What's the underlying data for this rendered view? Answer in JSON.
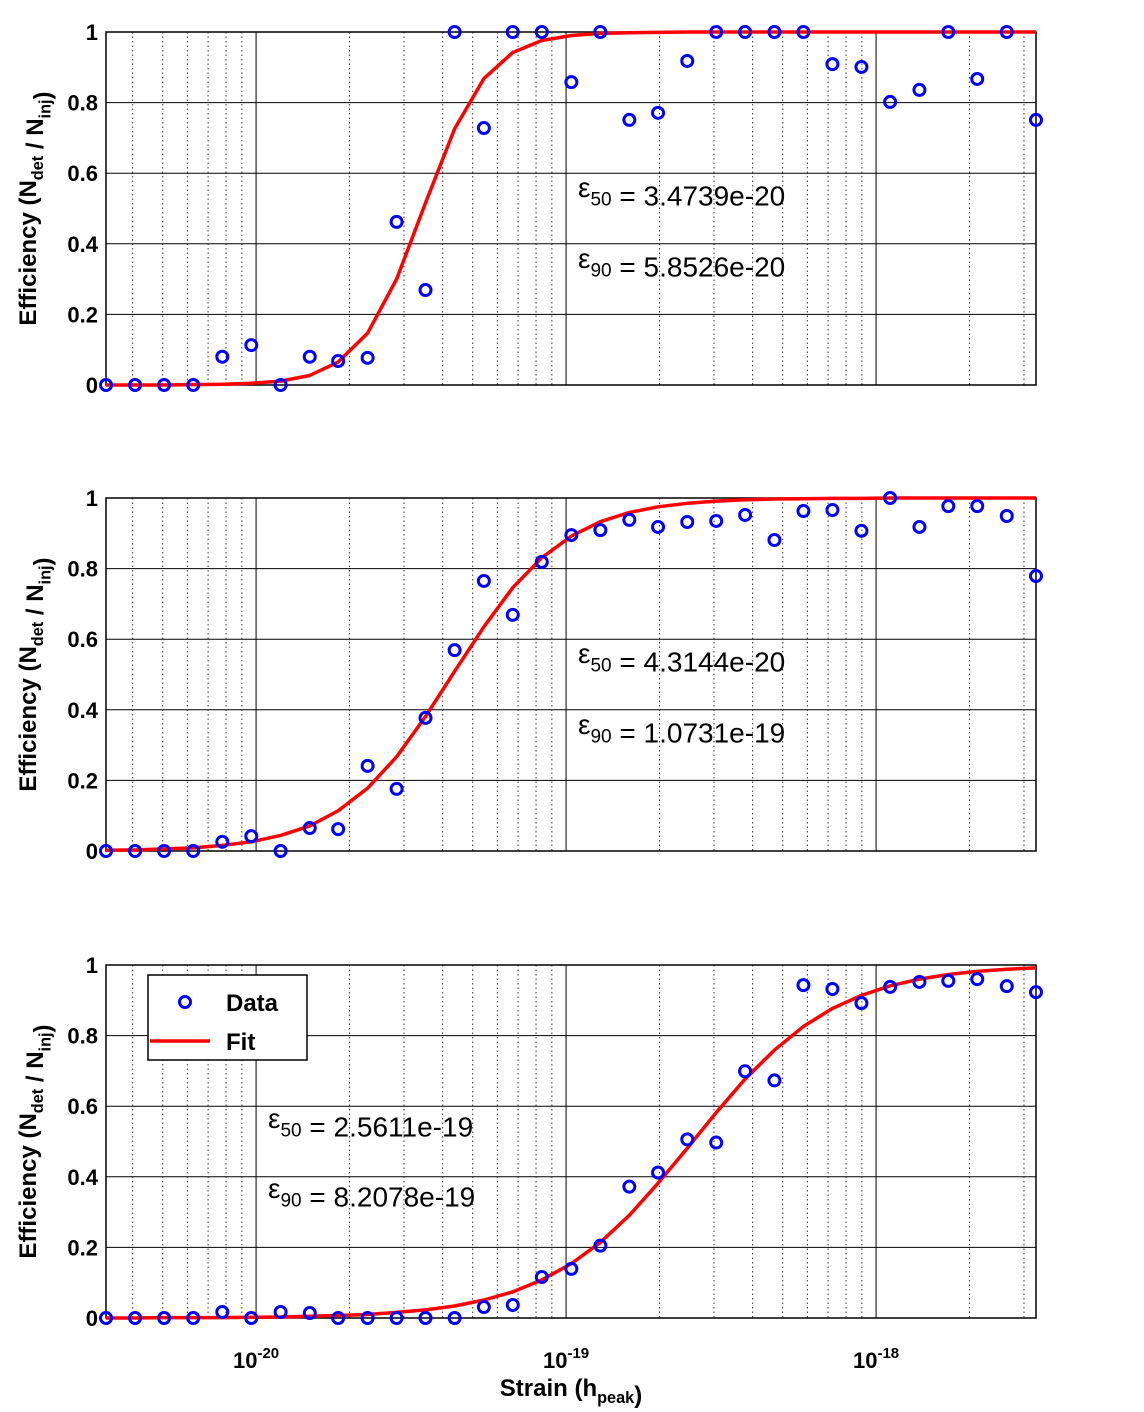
{
  "chart_data": [
    {
      "type": "scatter",
      "ylabel": "Efficiency  (N_det / N_inj)",
      "xscale": "log",
      "grid": true,
      "minor_grid": true,
      "xlim": [
        3.28e-21,
        3.28e-18
      ],
      "xticks": [
        1e-20,
        1e-19,
        1e-18
      ],
      "ylim": [
        0,
        1
      ],
      "yticks": [
        0,
        0.2,
        0.4,
        0.6,
        0.8,
        1
      ],
      "x": [
        3.28e-21,
        4.07e-21,
        5.05e-21,
        6.27e-21,
        7.78e-21,
        9.65e-21,
        1.2e-20,
        1.49e-20,
        1.84e-20,
        2.29e-20,
        2.84e-20,
        3.52e-20,
        4.37e-20,
        5.43e-20,
        6.73e-20,
        8.35e-20,
        1.04e-19,
        1.29e-19,
        1.6e-19,
        1.98e-19,
        2.46e-19,
        3.05e-19,
        3.78e-19,
        4.7e-19,
        5.83e-19,
        7.23e-19,
        8.97e-19,
        1.11e-18,
        1.38e-18,
        1.71e-18,
        2.12e-18,
        2.64e-18,
        3.28e-18
      ],
      "series": [
        {
          "kind": "marker",
          "color": "#0000ff",
          "values": [
            0,
            0,
            0,
            0,
            0.08,
            0.113,
            0,
            0.08,
            0.068,
            0.077,
            0.462,
            0.269,
            1,
            0.728,
            1,
            1,
            0.858,
            1,
            0.751,
            0.771,
            0.918,
            1,
            1,
            1,
            1,
            0.909,
            0.901,
            0.802,
            0.836,
            1,
            0.867,
            1,
            0.751
          ]
        },
        {
          "kind": "line",
          "color": "#ff0000",
          "values": [
            0,
            0,
            0,
            0.001,
            0.002,
            0.005,
            0.011,
            0.027,
            0.065,
            0.147,
            0.3,
            0.516,
            0.726,
            0.868,
            0.942,
            0.976,
            0.99,
            0.996,
            0.998,
            0.999,
            1,
            1,
            1,
            1,
            1,
            1,
            1,
            1,
            1,
            1,
            1,
            1,
            1
          ]
        }
      ],
      "annotations": [
        "ε_50 = 3.4739e-20",
        "ε_90 = 5.8526e-20"
      ]
    },
    {
      "type": "scatter",
      "ylabel": "Efficiency  (N_det / N_inj)",
      "xscale": "log",
      "grid": true,
      "minor_grid": true,
      "xlim": [
        3.28e-21,
        3.28e-18
      ],
      "xticks": [
        1e-20,
        1e-19,
        1e-18
      ],
      "ylim": [
        0,
        1
      ],
      "yticks": [
        0,
        0.2,
        0.4,
        0.6,
        0.8,
        1
      ],
      "x": [
        3.28e-21,
        4.07e-21,
        5.05e-21,
        6.27e-21,
        7.78e-21,
        9.65e-21,
        1.2e-20,
        1.49e-20,
        1.84e-20,
        2.29e-20,
        2.84e-20,
        3.52e-20,
        4.37e-20,
        5.43e-20,
        6.73e-20,
        8.35e-20,
        1.04e-19,
        1.29e-19,
        1.6e-19,
        1.98e-19,
        2.46e-19,
        3.05e-19,
        3.78e-19,
        4.7e-19,
        5.83e-19,
        7.23e-19,
        8.97e-19,
        1.11e-18,
        1.38e-18,
        1.71e-18,
        2.12e-18,
        2.64e-18,
        3.28e-18
      ],
      "series": [
        {
          "kind": "marker",
          "color": "#0000ff",
          "values": [
            0,
            0,
            0,
            0,
            0.026,
            0.042,
            0,
            0.065,
            0.062,
            0.241,
            0.176,
            0.377,
            0.569,
            0.765,
            0.669,
            0.819,
            0.895,
            0.909,
            0.938,
            0.918,
            0.932,
            0.935,
            0.952,
            0.881,
            0.963,
            0.966,
            0.907,
            1,
            0.918,
            0.977,
            0.977,
            0.949,
            0.779
          ]
        },
        {
          "kind": "line",
          "color": "#ff0000",
          "values": [
            0.002,
            0.003,
            0.006,
            0.009,
            0.016,
            0.026,
            0.044,
            0.071,
            0.114,
            0.178,
            0.267,
            0.381,
            0.509,
            0.635,
            0.746,
            0.831,
            0.892,
            0.933,
            0.959,
            0.975,
            0.985,
            0.991,
            0.995,
            0.997,
            0.998,
            0.999,
            0.999,
            1,
            1,
            1,
            1,
            1,
            1
          ]
        }
      ],
      "annotations": [
        "ε_50 = 4.3144e-20",
        "ε_90 = 1.0731e-19"
      ]
    },
    {
      "type": "scatter",
      "ylabel": "Efficiency  (N_det / N_inj)",
      "xlabel": "Strain  (h_peak)",
      "xscale": "log",
      "grid": true,
      "minor_grid": true,
      "legend": "upper left",
      "xlim": [
        3.28e-21,
        3.28e-18
      ],
      "xticks": [
        {
          "value": 1e-20,
          "label": "10^-20"
        },
        {
          "value": 1e-19,
          "label": "10^-19"
        },
        {
          "value": 1e-18,
          "label": "10^-18"
        }
      ],
      "ylim": [
        0,
        1
      ],
      "yticks": [
        0,
        0.2,
        0.4,
        0.6,
        0.8,
        1
      ],
      "x": [
        3.28e-21,
        4.07e-21,
        5.05e-21,
        6.27e-21,
        7.78e-21,
        9.65e-21,
        1.2e-20,
        1.49e-20,
        1.84e-20,
        2.29e-20,
        2.84e-20,
        3.52e-20,
        4.37e-20,
        5.43e-20,
        6.73e-20,
        8.35e-20,
        1.04e-19,
        1.29e-19,
        1.6e-19,
        1.98e-19,
        2.46e-19,
        3.05e-19,
        3.78e-19,
        4.7e-19,
        5.83e-19,
        7.23e-19,
        8.97e-19,
        1.11e-18,
        1.38e-18,
        1.71e-18,
        2.12e-18,
        2.64e-18,
        3.28e-18
      ],
      "series": [
        {
          "name": "Data",
          "kind": "marker",
          "color": "#0000ff",
          "values": [
            0,
            0,
            0,
            0,
            0.017,
            0,
            0.017,
            0.014,
            0,
            0,
            0,
            0,
            0,
            0.031,
            0.037,
            0.116,
            0.139,
            0.205,
            0.372,
            0.412,
            0.506,
            0.497,
            0.699,
            0.673,
            0.943,
            0.932,
            0.892,
            0.938,
            0.952,
            0.955,
            0.96,
            0.94,
            0.923
          ]
        },
        {
          "name": "Fit",
          "kind": "line",
          "color": "#ff0000",
          "values": [
            0,
            0,
            0.001,
            0.001,
            0.001,
            0.002,
            0.003,
            0.005,
            0.007,
            0.01,
            0.016,
            0.023,
            0.034,
            0.051,
            0.074,
            0.108,
            0.154,
            0.214,
            0.291,
            0.382,
            0.481,
            0.582,
            0.677,
            0.759,
            0.826,
            0.877,
            0.914,
            0.941,
            0.96,
            0.973,
            0.982,
            0.988,
            0.992
          ]
        }
      ],
      "annotations": [
        "ε_50 = 2.5611e-19",
        "ε_90 = 8.2078e-19"
      ]
    }
  ]
}
